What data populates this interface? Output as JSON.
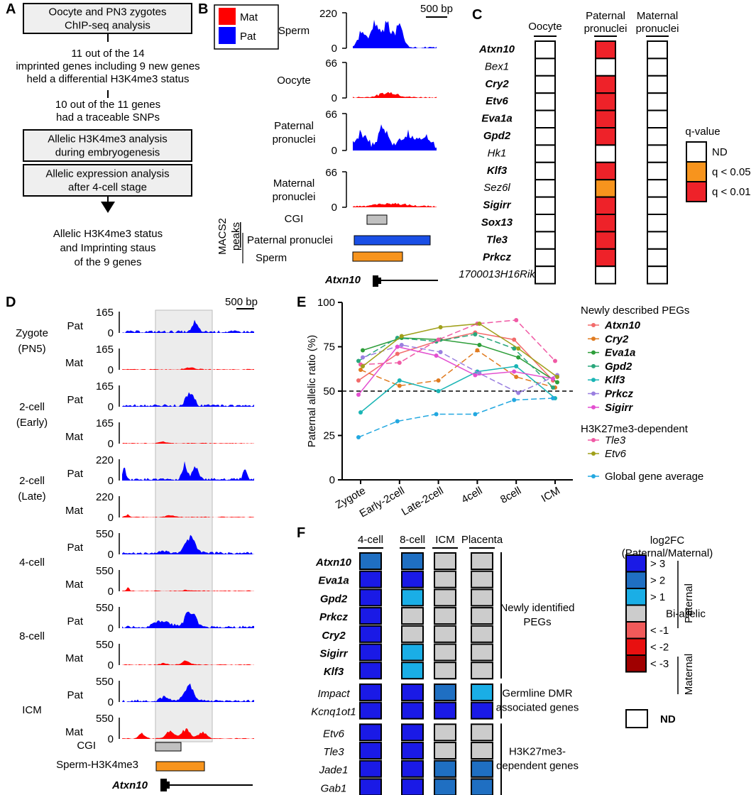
{
  "panels": {
    "A": "A",
    "B": "B",
    "C": "C",
    "D": "D",
    "E": "E",
    "F": "F"
  },
  "panelA": {
    "box1": [
      "Oocyte and PN3 zygotes",
      "ChIP-seq analysis"
    ],
    "text1": [
      "11 out of the 14",
      "imprinted genes including 9 new genes",
      "held a differential H3K4me3 status"
    ],
    "text2": [
      "10 out of the 11 genes",
      "had a traceable SNPs"
    ],
    "box2": [
      "Allelic H3K4me3 analysis",
      "during embryogenesis"
    ],
    "box3": [
      "Allelic expression analysis",
      "after 4-cell stage"
    ],
    "text3": [
      "Allelic H3K4me3 status",
      "and Imprinting staus",
      "of the 9 genes"
    ]
  },
  "panelB": {
    "legend": [
      {
        "label": "Mat",
        "color": "#ff0000"
      },
      {
        "label": "Pat",
        "color": "#0000ff"
      }
    ],
    "scale": "500 bp",
    "tracks": [
      {
        "label": [
          "Sperm"
        ],
        "max": "220",
        "zero": "0",
        "color": "#0000ff"
      },
      {
        "label": [
          "Oocyte"
        ],
        "max": "66",
        "zero": "0",
        "color": "#ff0000"
      },
      {
        "label": [
          "Paternal",
          "pronuclei"
        ],
        "max": "66",
        "zero": "0",
        "color": "#0000ff"
      },
      {
        "label": [
          "Maternal",
          "pronuclei"
        ],
        "max": "66",
        "zero": "0",
        "color": "#ff0000"
      }
    ],
    "cgi": "CGI",
    "macs_label": [
      "MACS2",
      "peaks"
    ],
    "peak_pat": "Paternal pronuclei",
    "peak_sperm": "Sperm",
    "gene": "Atxn10"
  },
  "panelC": {
    "columns": [
      [
        "Oocyte"
      ],
      [
        "Paternal",
        "pronuclei"
      ],
      [
        "Maternal",
        "pronuclei"
      ]
    ],
    "genes": [
      {
        "name": "Atxn10",
        "bold": true,
        "pat": "q<0.01"
      },
      {
        "name": "Bex1",
        "bold": false,
        "pat": "ND"
      },
      {
        "name": "Cry2",
        "bold": true,
        "pat": "q<0.01"
      },
      {
        "name": "Etv6",
        "bold": true,
        "pat": "q<0.01"
      },
      {
        "name": "Eva1a",
        "bold": true,
        "pat": "q<0.01"
      },
      {
        "name": "Gpd2",
        "bold": true,
        "pat": "q<0.01"
      },
      {
        "name": "Hk1",
        "bold": false,
        "pat": "ND"
      },
      {
        "name": "Klf3",
        "bold": true,
        "pat": "q<0.01"
      },
      {
        "name": "Sez6l",
        "bold": false,
        "pat": "q<0.05"
      },
      {
        "name": "Sigirr",
        "bold": true,
        "pat": "q<0.01"
      },
      {
        "name": "Sox13",
        "bold": true,
        "pat": "q<0.01"
      },
      {
        "name": "Tle3",
        "bold": true,
        "pat": "q<0.01"
      },
      {
        "name": "Prkcz",
        "bold": true,
        "pat": "q<0.01"
      },
      {
        "name": "1700013H16Rik",
        "bold": false,
        "pat": "ND"
      }
    ],
    "legend_title": "q-value",
    "legend": [
      {
        "label": "ND",
        "color": "#ffffff"
      },
      {
        "label": "q < 0.05",
        "color": "#f7941d"
      },
      {
        "label": "q < 0.01",
        "color": "#ee2229"
      }
    ]
  },
  "panelD": {
    "scale": "500 bp",
    "stages": [
      {
        "name": [
          "Zygote",
          "(PN5)"
        ],
        "pat_max": "165",
        "mat_max": "165"
      },
      {
        "name": [
          "2-cell",
          "(Early)"
        ],
        "pat_max": "165",
        "mat_max": "165"
      },
      {
        "name": [
          "2-cell",
          "(Late)"
        ],
        "pat_max": "220",
        "mat_max": "220"
      },
      {
        "name": [
          "4-cell"
        ],
        "pat_max": "550",
        "mat_max": "550"
      },
      {
        "name": [
          "8-cell"
        ],
        "pat_max": "550",
        "mat_max": "550"
      },
      {
        "name": [
          "ICM"
        ],
        "pat_max": "550",
        "mat_max": "550"
      }
    ],
    "pat": "Pat",
    "mat": "Mat",
    "zero": "0",
    "cgi": "CGI",
    "sperm": "Sperm-H3K4me3",
    "gene": "Atxn10"
  },
  "chart_data": {
    "type": "line",
    "categories": [
      "Zygote",
      "Early-2cell",
      "Late-2cell",
      "4cell",
      "8cell",
      "ICM"
    ],
    "ylabel": "Paternal allelic ratio (%)",
    "ylim": [
      0,
      100
    ],
    "yticks": [
      "0",
      "25",
      "50",
      "75",
      "100"
    ],
    "reference_line": 50,
    "series": [
      {
        "name": "Atxn10",
        "color": "#f26b6b",
        "style": "bold",
        "values": [
          56,
          71,
          78,
          83,
          79,
          56
        ]
      },
      {
        "name": "Cry2",
        "color": "#e07b20",
        "style": "bold",
        "values": [
          62,
          53,
          56,
          73,
          58,
          52
        ]
      },
      {
        "name": "Eva1a",
        "color": "#2e9e3a",
        "style": "bold",
        "values": [
          73,
          80,
          79,
          76,
          69,
          55
        ]
      },
      {
        "name": "Gpd2",
        "color": "#2aa77c",
        "style": "bold",
        "values": [
          67,
          80,
          78,
          82,
          74,
          52
        ]
      },
      {
        "name": "Klf3",
        "color": "#1ab5b5",
        "style": "bold",
        "values": [
          38,
          56,
          50,
          61,
          64,
          46
        ]
      },
      {
        "name": "Prkcz",
        "color": "#9a7fe0",
        "style": "bold",
        "values": [
          69,
          76,
          72,
          60,
          49,
          59
        ]
      },
      {
        "name": "Sigirr",
        "color": "#e34fd0",
        "style": "bold",
        "values": [
          48,
          75,
          70,
          59,
          61,
          57
        ]
      },
      {
        "name": "Tle3",
        "color": "#f05aa5",
        "style": "italic",
        "values": [
          65,
          66,
          79,
          88,
          90,
          67
        ]
      },
      {
        "name": "Etv6",
        "color": "#a0a01a",
        "style": "italic",
        "values": [
          64,
          81,
          86,
          88,
          74,
          58
        ]
      },
      {
        "name": "Global gene average",
        "color": "#23a8e0",
        "style": "plain",
        "values": [
          24,
          33,
          37,
          37,
          45,
          46
        ]
      }
    ],
    "legend_group1": "Newly described PEGs",
    "legend_group2": "H3K27me3-dependent"
  },
  "panelF": {
    "columns": [
      "4-cell",
      "8-cell",
      "ICM",
      "Placenta"
    ],
    "groups": [
      {
        "label": [
          "Newly identified",
          "PEGs"
        ],
        "rows": [
          {
            "gene": "Atxn10",
            "bold": true,
            "vals": [
              ">2",
              ">2",
              "Bi",
              "Bi"
            ]
          },
          {
            "gene": "Eva1a",
            "bold": true,
            "vals": [
              ">3",
              ">3",
              "Bi",
              "Bi"
            ]
          },
          {
            "gene": "Gpd2",
            "bold": true,
            "vals": [
              ">3",
              ">1",
              "Bi",
              "Bi"
            ]
          },
          {
            "gene": "Prkcz",
            "bold": true,
            "vals": [
              ">3",
              "Bi",
              "Bi",
              "Bi"
            ]
          },
          {
            "gene": "Cry2",
            "bold": true,
            "vals": [
              ">3",
              "Bi",
              "Bi",
              "Bi"
            ]
          },
          {
            "gene": "Sigirr",
            "bold": true,
            "vals": [
              ">3",
              ">1",
              "Bi",
              "Bi"
            ]
          },
          {
            "gene": "Klf3",
            "bold": true,
            "vals": [
              ">3",
              ">1",
              "Bi",
              "Bi"
            ]
          }
        ]
      },
      {
        "label": [
          "Germline DMR",
          "associated genes"
        ],
        "rows": [
          {
            "gene": "Impact",
            "bold": false,
            "vals": [
              ">3",
              ">3",
              ">2",
              ">1"
            ]
          },
          {
            "gene": "Kcnq1ot1",
            "bold": false,
            "vals": [
              ">3",
              ">3",
              ">3",
              ">3"
            ]
          }
        ]
      },
      {
        "label": [
          "H3K27me3-",
          "dependent genes"
        ],
        "rows": [
          {
            "gene": "Etv6",
            "bold": false,
            "vals": [
              ">3",
              ">3",
              "Bi",
              "Bi"
            ]
          },
          {
            "gene": "Tle3",
            "bold": false,
            "vals": [
              ">3",
              ">3",
              "Bi",
              "Bi"
            ]
          },
          {
            "gene": "Jade1",
            "bold": false,
            "vals": [
              ">3",
              ">3",
              ">2",
              ">2"
            ]
          },
          {
            "gene": "Gab1",
            "bold": false,
            "vals": [
              ">3",
              ">3",
              ">2",
              ">2"
            ]
          }
        ]
      }
    ],
    "legend_title": [
      "log2FC",
      "(Paternal/Maternal)"
    ],
    "legend": [
      {
        "key": ">3",
        "label": "> 3",
        "color": "#1a1ae6"
      },
      {
        "key": ">2",
        "label": "> 2",
        "color": "#1f6fc2"
      },
      {
        "key": ">1",
        "label": "> 1",
        "color": "#1aaee6"
      },
      {
        "key": "Bi",
        "label": "Bi-allelic",
        "color": "#cccccc"
      },
      {
        "key": "<-1",
        "label": "< -1",
        "color": "#f05a5a"
      },
      {
        "key": "<-2",
        "label": "< -2",
        "color": "#e81010"
      },
      {
        "key": "<-3",
        "label": "< -3",
        "color": "#a00000"
      }
    ],
    "legend_paternal": "Paternal",
    "legend_maternal": "Maternal",
    "legend_nd": "ND"
  }
}
